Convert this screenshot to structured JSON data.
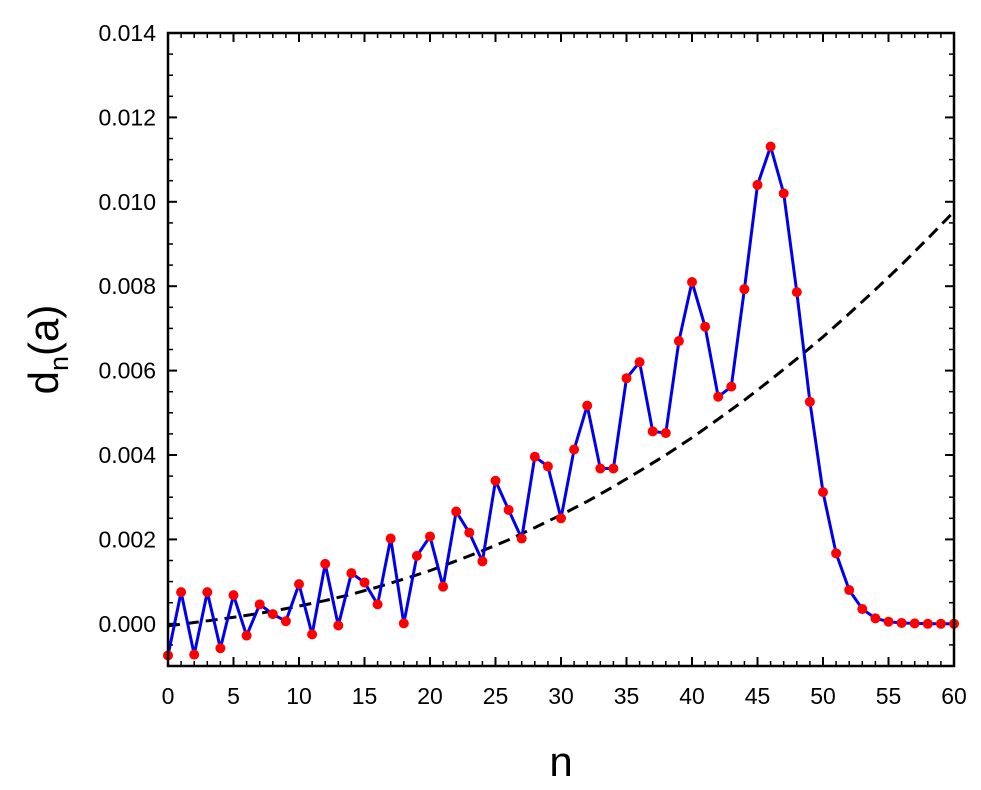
{
  "chart_data": {
    "type": "line",
    "xlabel": "n",
    "ylabel": {
      "main": "d",
      "subscript": "n",
      "suffix": "(a)"
    },
    "xlim": [
      0,
      60
    ],
    "ylim": [
      -0.001,
      0.014
    ],
    "x_ticks": [
      "0",
      "5",
      "10",
      "15",
      "20",
      "25",
      "30",
      "35",
      "40",
      "45",
      "50",
      "55",
      "60"
    ],
    "y_ticks": [
      "0.000",
      "0.002",
      "0.004",
      "0.006",
      "0.008",
      "0.010",
      "0.012",
      "0.014"
    ],
    "x_tick_values": [
      0,
      5,
      10,
      15,
      20,
      25,
      30,
      35,
      40,
      45,
      50,
      55,
      60
    ],
    "y_tick_values": [
      0,
      0.002,
      0.004,
      0.006,
      0.008,
      0.01,
      0.012,
      0.014
    ],
    "x_minor_step": 1,
    "y_minor_step": 0.0005,
    "grid": false,
    "legend": "none",
    "series": [
      {
        "style": "solid line with markers",
        "line_color": "#0000ee",
        "marker_color": "#ff0000",
        "x": [
          0,
          1,
          2,
          3,
          4,
          5,
          6,
          7,
          8,
          9,
          10,
          11,
          12,
          13,
          14,
          15,
          16,
          17,
          18,
          19,
          20,
          21,
          22,
          23,
          24,
          25,
          26,
          27,
          28,
          29,
          30,
          31,
          32,
          33,
          34,
          35,
          36,
          37,
          38,
          39,
          40,
          41,
          42,
          43,
          44,
          45,
          46,
          47,
          48,
          49,
          50,
          51,
          52,
          53,
          54,
          55,
          56,
          57,
          58,
          59,
          60
        ],
        "y": [
          -0.00075,
          0.00075,
          -0.00073,
          0.00075,
          -0.00058,
          0.00068,
          -0.00028,
          0.00046,
          0.00023,
          6e-05,
          0.00094,
          -0.00025,
          0.00142,
          -4e-05,
          0.0012,
          0.00098,
          0.00046,
          0.00202,
          1e-05,
          0.00161,
          0.00207,
          0.00088,
          0.00266,
          0.00216,
          0.00148,
          0.00339,
          0.0027,
          0.00202,
          0.00396,
          0.00373,
          0.0025,
          0.00413,
          0.00517,
          0.00368,
          0.00368,
          0.00582,
          0.0062,
          0.00456,
          0.00452,
          0.0067,
          0.0081,
          0.00704,
          0.00538,
          0.00562,
          0.00793,
          0.0104,
          0.01131,
          0.0102,
          0.00786,
          0.00526,
          0.00312,
          0.00167,
          0.0008,
          0.00035,
          0.00013,
          5e-05,
          2e-05,
          1e-05,
          0.0,
          0.0,
          0.0
        ]
      },
      {
        "style": "dashed line",
        "line_color": "#000000",
        "x": [
          0,
          2,
          4,
          6,
          8,
          10,
          12,
          14,
          16,
          18,
          20,
          22,
          24,
          26,
          28,
          30,
          32,
          34,
          36,
          38,
          40,
          42,
          44,
          46,
          48,
          50,
          52,
          54,
          56,
          58,
          60
        ],
        "y": [
          -5e-05,
          3e-05,
          0.00011,
          0.0002,
          0.0003,
          0.00042,
          0.00055,
          0.0007,
          0.00087,
          0.00106,
          0.00126,
          0.00149,
          0.00173,
          0.00199,
          0.00228,
          0.00258,
          0.0029,
          0.00325,
          0.00362,
          0.004,
          0.00441,
          0.00485,
          0.0053,
          0.00578,
          0.00628,
          0.0068,
          0.00735,
          0.00792,
          0.00851,
          0.00913,
          0.00977
        ]
      }
    ]
  }
}
